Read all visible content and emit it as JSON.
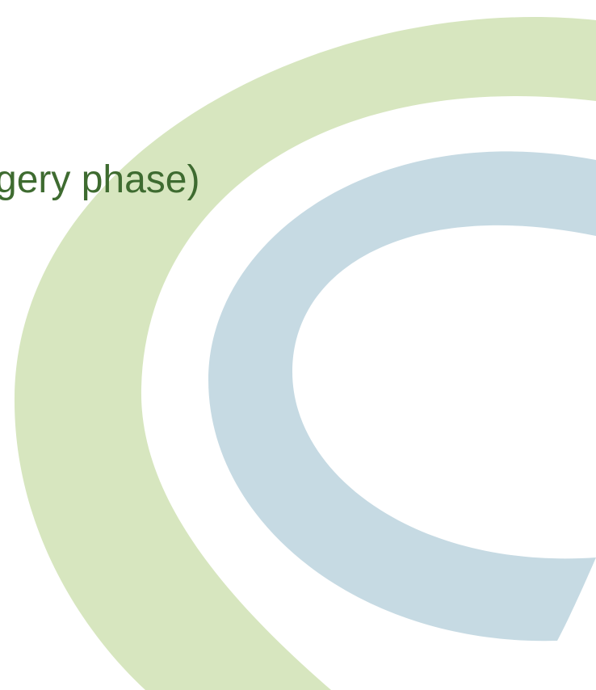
{
  "text": "gery phase)"
}
